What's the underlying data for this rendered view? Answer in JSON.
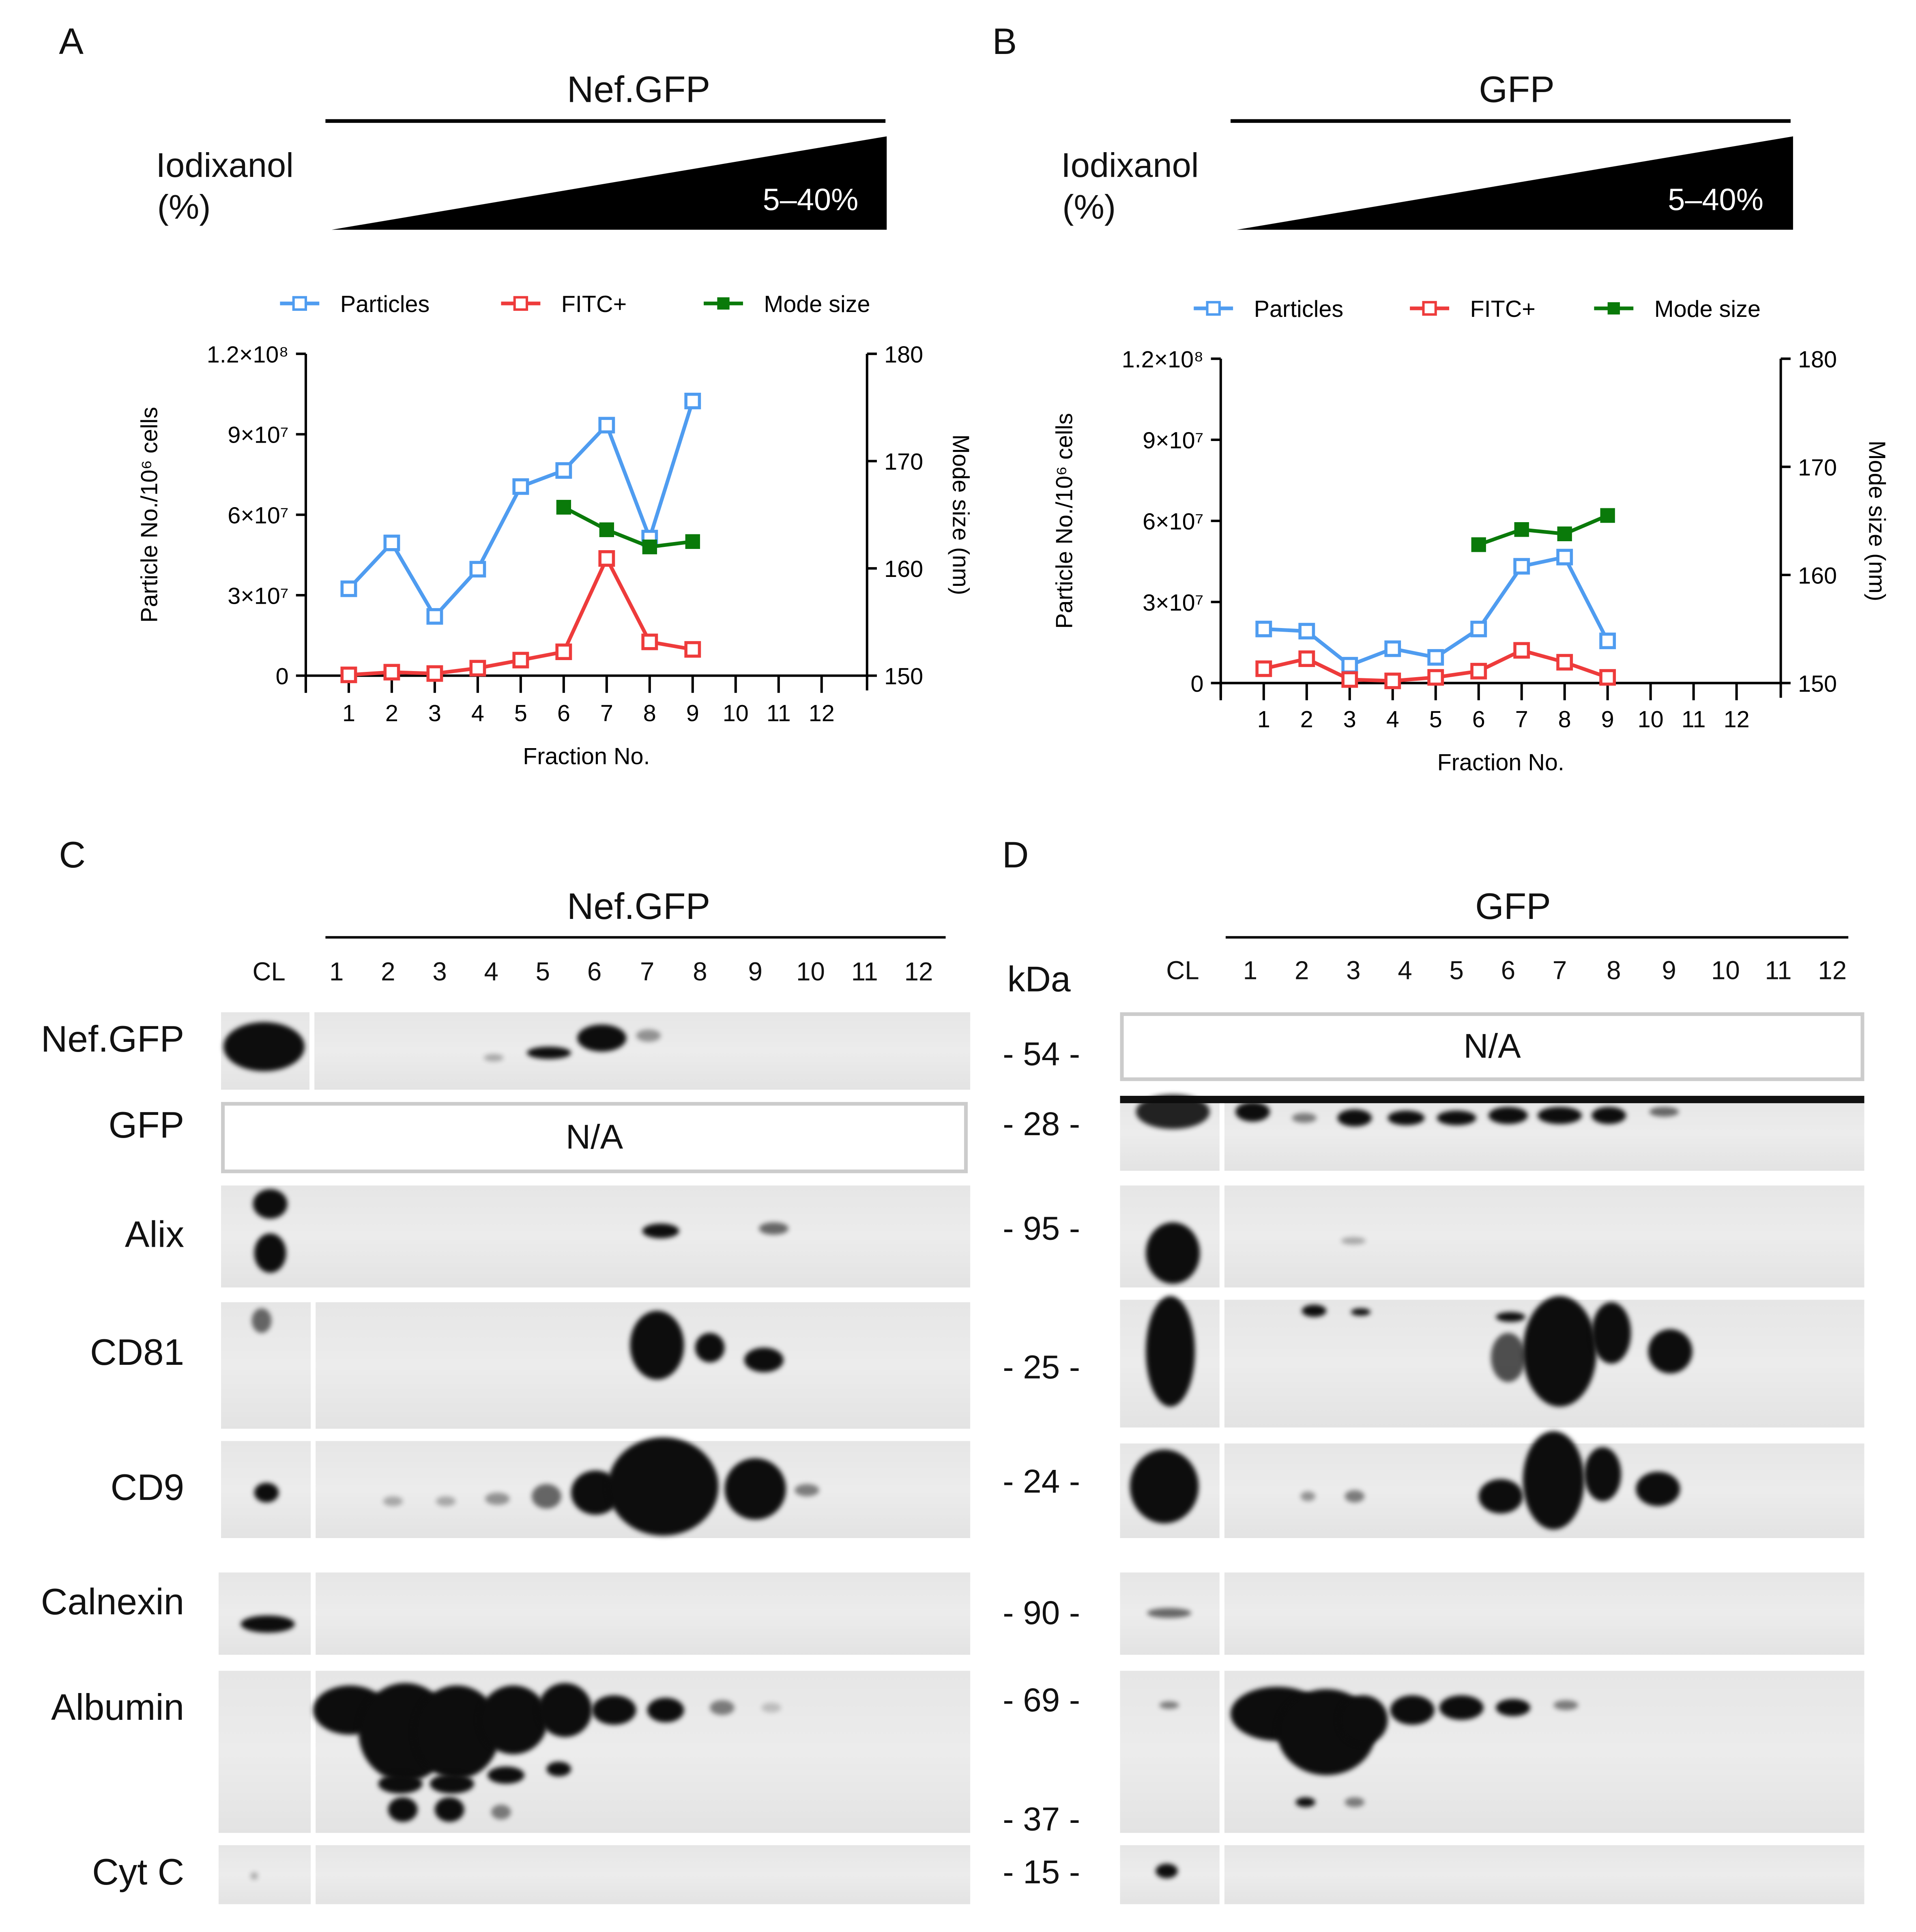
{
  "panels": {
    "A": {
      "letter": "A",
      "title": "Nef.GFP",
      "iodixanol_label": "Iodixanol",
      "iodixanol_unit": "(%)",
      "gradient_label": "5–40%"
    },
    "B": {
      "letter": "B",
      "title": "GFP",
      "iodixanol_label": "Iodixanol",
      "iodixanol_unit": "(%)",
      "gradient_label": "5–40%"
    },
    "C": {
      "letter": "C",
      "title": "Nef.GFP",
      "na_label": "N/A"
    },
    "D": {
      "letter": "D",
      "title": "GFP",
      "na_label": "N/A"
    }
  },
  "lanes": [
    "CL",
    "1",
    "2",
    "3",
    "4",
    "5",
    "6",
    "7",
    "8",
    "9",
    "10",
    "11",
    "12"
  ],
  "row_labels": [
    "Nef.GFP",
    "GFP",
    "Alix",
    "CD81",
    "CD9",
    "Calnexin",
    "Albumin",
    "Cyt C"
  ],
  "kda": {
    "header": "kDa",
    "markers": [
      "- 54 -",
      "- 28 -",
      "- 95 -",
      "- 25 -",
      "- 24 -",
      "- 90 -",
      "- 69 -",
      "- 37 -",
      "- 15 -"
    ]
  },
  "colors": {
    "particles": "#4f9cf0",
    "fitc": "#ee3b3b",
    "mode": "#0a7a0a"
  },
  "chart_data": [
    {
      "type": "line",
      "panel": "A",
      "xlabel": "Fraction No.",
      "ylabel": "Particle No./10⁶ cells",
      "y2label": "Mode size (nm)",
      "categories": [
        "1",
        "2",
        "3",
        "4",
        "5",
        "6",
        "7",
        "8",
        "9",
        "10",
        "11",
        "12"
      ],
      "ylim": [
        0,
        120000000
      ],
      "yticks": [
        0,
        30000000,
        60000000,
        90000000,
        120000000
      ],
      "ytick_labels": [
        "0",
        "3×10⁷",
        "6×10⁷",
        "9×10⁷",
        "1.2×10⁸"
      ],
      "y2lim": [
        150,
        180
      ],
      "y2ticks": [
        "150",
        "160",
        "170",
        "180"
      ],
      "legend": "top",
      "grid": false,
      "series": [
        {
          "name": "Particles",
          "axis": "left",
          "color": "#4f9cf0",
          "marker": "open-square",
          "values": [
            32400000,
            49500000,
            22100000,
            39700000,
            70500000,
            76500000,
            93400000,
            51300000,
            102400000,
            null,
            null,
            null
          ]
        },
        {
          "name": "FITC+",
          "axis": "left",
          "color": "#ee3b3b",
          "marker": "open-square",
          "values": [
            300000,
            1300000,
            800000,
            2800000,
            5800000,
            8900000,
            43700000,
            12600000,
            9800000,
            null,
            null,
            null
          ]
        },
        {
          "name": "Mode size",
          "axis": "right",
          "color": "#0a7a0a",
          "marker": "filled-square",
          "values": [
            null,
            null,
            null,
            null,
            null,
            165.7,
            163.6,
            162.0,
            162.5,
            null,
            null,
            null
          ]
        }
      ]
    },
    {
      "type": "line",
      "panel": "B",
      "xlabel": "Fraction No.",
      "ylabel": "Particle No./10⁶ cells",
      "y2label": "Mode size (nm)",
      "categories": [
        "1",
        "2",
        "3",
        "4",
        "5",
        "6",
        "7",
        "8",
        "9",
        "10",
        "11",
        "12"
      ],
      "ylim": [
        0,
        120000000
      ],
      "yticks": [
        0,
        30000000,
        60000000,
        90000000,
        120000000
      ],
      "ytick_labels": [
        "0",
        "3×10⁷",
        "6×10⁷",
        "9×10⁷",
        "1.2×10⁸"
      ],
      "y2lim": [
        150,
        180
      ],
      "y2ticks": [
        "150",
        "160",
        "170",
        "180"
      ],
      "legend": "top",
      "grid": false,
      "series": [
        {
          "name": "Particles",
          "axis": "left",
          "color": "#4f9cf0",
          "marker": "open-square",
          "values": [
            20000000,
            19200000,
            6600000,
            12700000,
            9500000,
            20000000,
            43200000,
            46600000,
            15600000,
            null,
            null,
            null
          ]
        },
        {
          "name": "FITC+",
          "axis": "left",
          "color": "#ee3b3b",
          "marker": "open-square",
          "values": [
            5300000,
            9000000,
            1300000,
            800000,
            2100000,
            4400000,
            12100000,
            7700000,
            2100000,
            null,
            null,
            null
          ]
        },
        {
          "name": "Mode size",
          "axis": "right",
          "color": "#0a7a0a",
          "marker": "filled-square",
          "values": [
            null,
            null,
            null,
            null,
            null,
            162.8,
            164.2,
            163.8,
            165.5,
            null,
            null,
            null
          ]
        }
      ]
    }
  ]
}
